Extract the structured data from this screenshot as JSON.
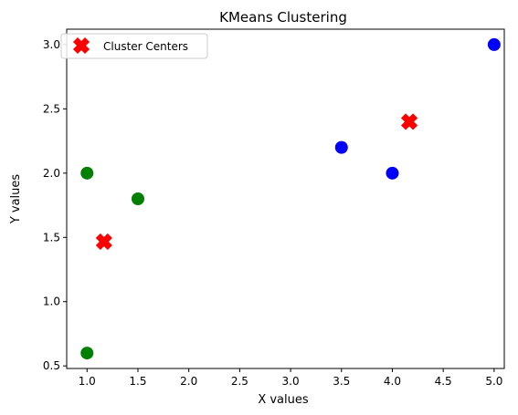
{
  "chart_data": {
    "type": "scatter",
    "title": "KMeans Clustering",
    "xlabel": "X values",
    "ylabel": "Y values",
    "xlim": [
      0.8,
      5.1
    ],
    "ylim": [
      0.48,
      3.12
    ],
    "x_ticks": [
      "1.0",
      "1.5",
      "2.0",
      "2.5",
      "3.0",
      "3.5",
      "4.0",
      "4.5",
      "5.0"
    ],
    "y_ticks": [
      "0.5",
      "1.0",
      "1.5",
      "2.0",
      "2.5",
      "3.0"
    ],
    "grid": false,
    "legend_position": "top-left",
    "series": [
      {
        "color": "#008000",
        "marker": "circle",
        "points": [
          [
            1.0,
            2.0
          ],
          [
            1.5,
            1.8
          ],
          [
            1.0,
            0.6
          ]
        ]
      },
      {
        "color": "#0000ff",
        "marker": "circle",
        "points": [
          [
            5.0,
            3.0
          ],
          [
            3.5,
            2.2
          ],
          [
            4.0,
            2.0
          ]
        ]
      },
      {
        "name": "Cluster Centers",
        "color": "#ff0000",
        "marker": "x",
        "points": [
          [
            1.1667,
            1.4667
          ],
          [
            4.1667,
            2.4
          ]
        ]
      }
    ]
  }
}
